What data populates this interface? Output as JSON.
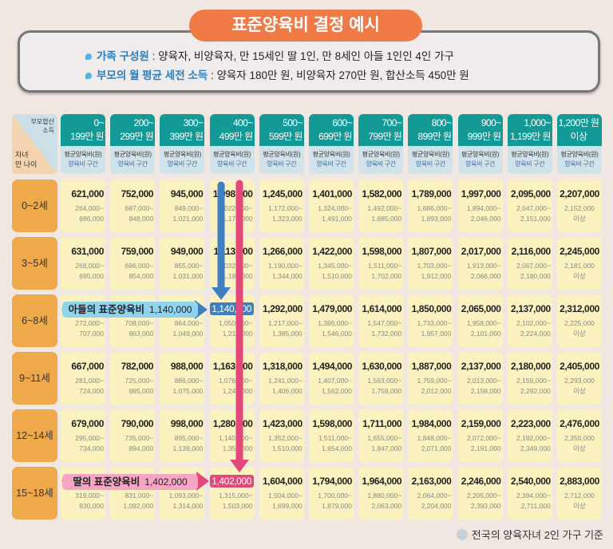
{
  "title": "표준양육비 결정 예시",
  "info": [
    {
      "key": "가족 구성원",
      "value": " : 양육자, 비양육자, 만 15세인 딸 1인, 만 8세인 아들 1인인 4인 가구"
    },
    {
      "key": "부모의 월 평균 세전 소득",
      "value": " : 양육자 180만 원, 비양육자 270만 원, 합산소득 450만 원"
    }
  ],
  "corner": {
    "top_line1": "부모합산",
    "top_line2": "소득",
    "bottom_line1": "자녀",
    "bottom_line2": "만 나이"
  },
  "sub_header": {
    "line1": "평균양육비(원)",
    "line2": "양육비 구간"
  },
  "columns": [
    [
      "0~",
      "199만 원"
    ],
    [
      "200~",
      "299만 원"
    ],
    [
      "300~",
      "399만 원"
    ],
    [
      "400~",
      "499만 원"
    ],
    [
      "500~",
      "599만 원"
    ],
    [
      "600~",
      "699만 원"
    ],
    [
      "700~",
      "799만 원"
    ],
    [
      "800~",
      "899만 원"
    ],
    [
      "900~",
      "999만 원"
    ],
    [
      "1,000~",
      "1,199만 원"
    ],
    [
      "1,200만 원",
      "이상"
    ]
  ],
  "rows": [
    {
      "age": "0~2세",
      "cells": [
        [
          "621,000",
          "264,000~",
          "686,000"
        ],
        [
          "752,000",
          "687,000~",
          "848,000"
        ],
        [
          "945,000",
          "849,000~",
          "1,021,000"
        ],
        [
          "1,098,000",
          "1,022,000~",
          "1,171,000"
        ],
        [
          "1,245,000",
          "1,172,000~",
          "1,323,000"
        ],
        [
          "1,401,000",
          "1,324,000~",
          "1,491,000"
        ],
        [
          "1,582,000",
          "1,492,000~",
          "1,685,000"
        ],
        [
          "1,789,000",
          "1,686,000~",
          "1,893,000"
        ],
        [
          "1,997,000",
          "1,894,000~",
          "2,046,000"
        ],
        [
          "2,095,000",
          "2,047,000~",
          "2,151,000"
        ],
        [
          "2,207,000",
          "2,152,000",
          "이상"
        ]
      ]
    },
    {
      "age": "3~5세",
      "cells": [
        [
          "631,000",
          "268,000~",
          "695,000"
        ],
        [
          "759,000",
          "696,000~",
          "854,000"
        ],
        [
          "949,000",
          "855,000~",
          "1,031,000"
        ],
        [
          "1,113,000",
          "1,032,000~",
          "1,189,000"
        ],
        [
          "1,266,000",
          "1,190,000~",
          "1,344,000"
        ],
        [
          "1,422,000",
          "1,345,000~",
          "1,510,000"
        ],
        [
          "1,598,000",
          "1,511,000~",
          "1,702,000"
        ],
        [
          "1,807,000",
          "1,703,000~",
          "1,912,000"
        ],
        [
          "2,017,000",
          "1,913,000~",
          "2,066,000"
        ],
        [
          "2,116,000",
          "2,067,000~",
          "2,180,000"
        ],
        [
          "2,245,000",
          "2,181,000",
          "이상"
        ]
      ]
    },
    {
      "age": "6~8세",
      "cells": [
        [
          "",
          "272,000~",
          "707,000"
        ],
        [
          "",
          "708,000~",
          "863,000"
        ],
        [
          "",
          "864,000~",
          "1,049,000"
        ],
        [
          "1,140,000",
          "1,050,000~",
          "1,216,000"
        ],
        [
          "1,292,000",
          "1,217,000~",
          "1,385,000"
        ],
        [
          "1,479,000",
          "1,386,000~",
          "1,546,000"
        ],
        [
          "1,614,000",
          "1,547,000~",
          "1,732,000"
        ],
        [
          "1,850,000",
          "1,733,000~",
          "1,957,000"
        ],
        [
          "2,065,000",
          "1,958,000~",
          "2,101,000"
        ],
        [
          "2,137,000",
          "2,102,000~",
          "2,224,000"
        ],
        [
          "2,312,000",
          "2,225,000",
          "이상"
        ]
      ]
    },
    {
      "age": "9~11세",
      "cells": [
        [
          "667,000",
          "281,000~",
          "724,000"
        ],
        [
          "782,000",
          "725,000~",
          "885,000"
        ],
        [
          "988,000",
          "886,000~",
          "1,075,000"
        ],
        [
          "1,163,000",
          "1,076,000~",
          "1,240,000"
        ],
        [
          "1,318,000",
          "1,241,000~",
          "1,406,000"
        ],
        [
          "1,494,000",
          "1,407,000~",
          "1,562,000"
        ],
        [
          "1,630,000",
          "1,563,000~",
          "1,758,000"
        ],
        [
          "1,887,000",
          "1,759,000~",
          "2,012,000"
        ],
        [
          "2,137,000",
          "2,013,000~",
          "2,158,000"
        ],
        [
          "2,180,000",
          "2,159,000~",
          "2,292,000"
        ],
        [
          "2,405,000",
          "2,293,000",
          "이상"
        ]
      ]
    },
    {
      "age": "12~14세",
      "cells": [
        [
          "679,000",
          "295,000~",
          "734,000"
        ],
        [
          "790,000",
          "735,000~",
          "894,000"
        ],
        [
          "998,000",
          "895,000~",
          "1,139,000"
        ],
        [
          "1,280,000",
          "1,140,000~",
          "1,351,000"
        ],
        [
          "1,423,000",
          "1,352,000~",
          "1,510,000"
        ],
        [
          "1,598,000",
          "1,511,000~",
          "1,654,000"
        ],
        [
          "1,711,000",
          "1,655,000~",
          "1,847,000"
        ],
        [
          "1,984,000",
          "1,848,000~",
          "2,071,000"
        ],
        [
          "2,159,000",
          "2,072,000~",
          "2,191,000"
        ],
        [
          "2,223,000",
          "2,192,000~",
          "2,349,000"
        ],
        [
          "2,476,000",
          "2,350,000",
          "이상"
        ]
      ]
    },
    {
      "age": "15~18세",
      "cells": [
        [
          "",
          "319,000~",
          "830,000"
        ],
        [
          "",
          "831,000~",
          "1,092,000"
        ],
        [
          "",
          "1,093,000~",
          "1,314,000"
        ],
        [
          "1,402,000",
          "1,315,000~",
          "1,503,000"
        ],
        [
          "1,604,000",
          "1,504,000~",
          "1,699,000"
        ],
        [
          "1,794,000",
          "1,700,000~",
          "1,879,000"
        ],
        [
          "1,964,000",
          "1,880,000~",
          "2,063,000"
        ],
        [
          "2,163,000",
          "2,064,000~",
          "2,204,000"
        ],
        [
          "2,246,000",
          "2,205,000~",
          "2,393,000"
        ],
        [
          "2,540,000",
          "2,394,000~",
          "2,711,000"
        ],
        [
          "2,883,000",
          "2,712,000",
          "이상"
        ]
      ]
    }
  ],
  "highlights": {
    "son": {
      "value": "1,140,000",
      "label": "아들의 표준양육비",
      "color": "#3d7fc0",
      "callout_bg": "#8fd3ef"
    },
    "daughter": {
      "value": "1,402,000",
      "label": "딸의 표준양육비",
      "color": "#e4477a",
      "callout_bg": "#f6a6c4"
    }
  },
  "footer": "전국의 양육자녀 2인 가구 기준"
}
